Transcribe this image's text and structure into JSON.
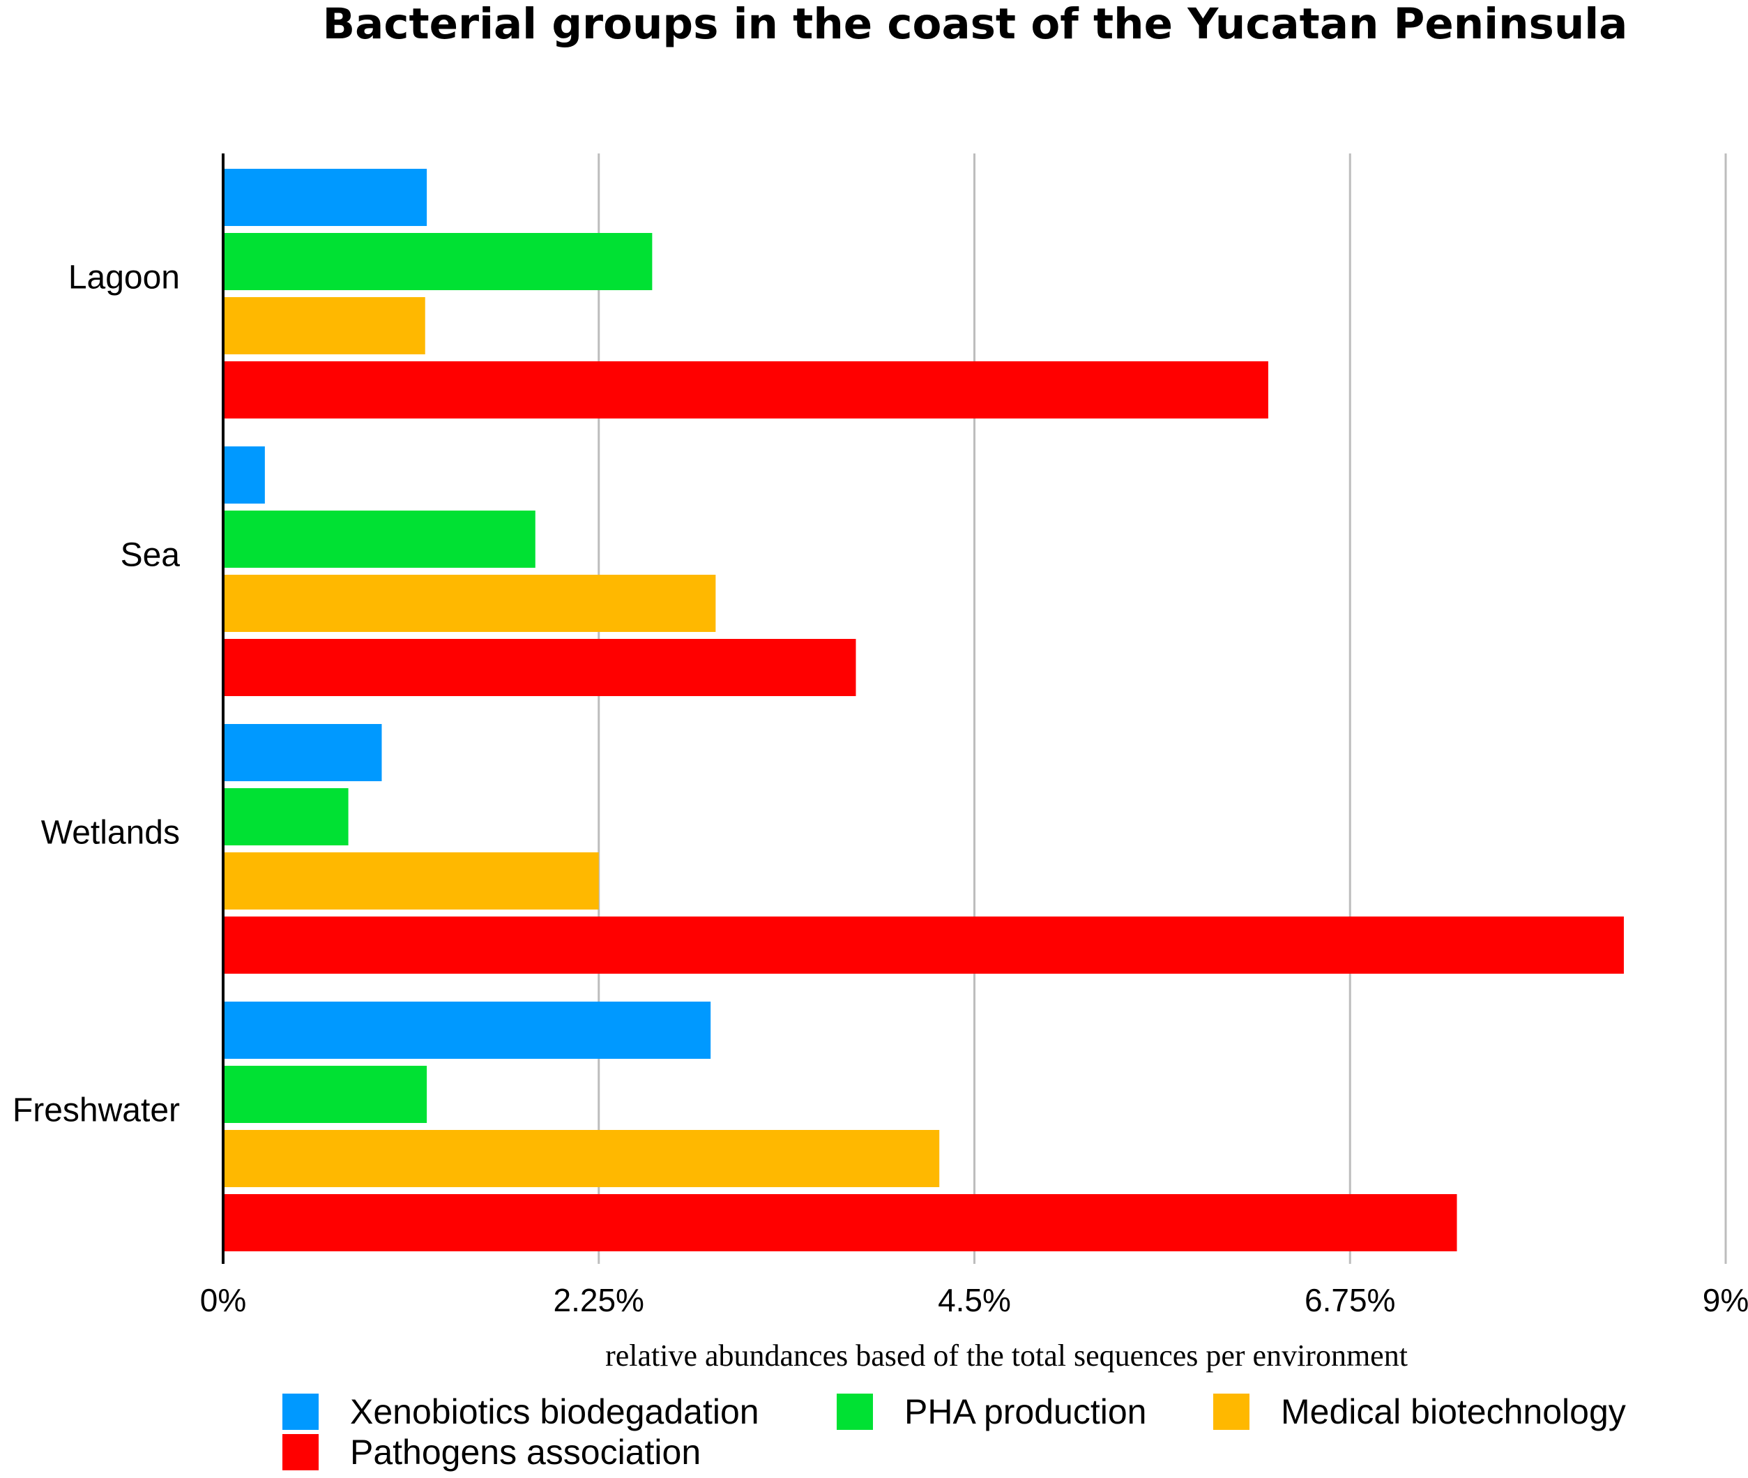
{
  "chart_data": {
    "type": "bar",
    "orientation": "horizontal",
    "title": "Bacterial groups in the coast of the Yucatan Peninsula",
    "xlabel": "relative abundances based of the total sequences per environment",
    "ylabel": "",
    "categories": [
      "Lagoon",
      "Sea",
      "Wetlands",
      "Freshwater"
    ],
    "xlim": [
      0,
      9
    ],
    "xticks": [
      0,
      2.25,
      4.5,
      6.75,
      9
    ],
    "xtick_labels": [
      "0%",
      "2.25%",
      "4.5%",
      "6.75%",
      "9%"
    ],
    "grid": "vertical",
    "legend_position": "bottom",
    "series": [
      {
        "name": "Xenobiotics biodegadation",
        "color": "#0099ff",
        "values": [
          1.22,
          0.25,
          0.95,
          2.92
        ]
      },
      {
        "name": "PHA production",
        "color": "#00e133",
        "values": [
          2.57,
          1.87,
          0.75,
          1.22
        ]
      },
      {
        "name": "Medical biotechnology",
        "color": "#ffb800",
        "values": [
          1.21,
          2.95,
          2.25,
          4.29
        ]
      },
      {
        "name": "Pathogens association",
        "color": "#ff0000",
        "values": [
          6.26,
          3.79,
          8.39,
          7.39
        ]
      }
    ]
  }
}
